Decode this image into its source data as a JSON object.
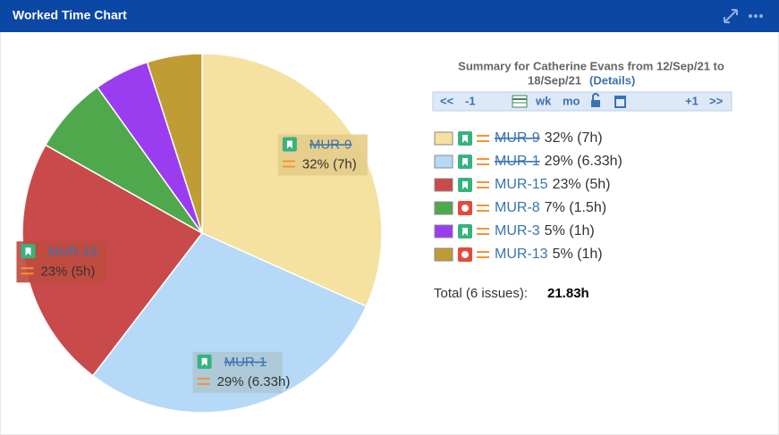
{
  "header": {
    "title": "Worked Time Chart"
  },
  "summary": {
    "title_line1": "Summary for Catherine Evans from 12/Sep/21 to",
    "title_line2": "18/Sep/21",
    "details": "(Details)"
  },
  "toolbar": {
    "prev_big": "<<",
    "prev": "-1",
    "week": "wk",
    "month": "mo",
    "next": "+1",
    "next_big": ">>"
  },
  "total": {
    "label": "Total (6 issues):",
    "value": "21.83h"
  },
  "chart_data": {
    "type": "pie",
    "categories": [
      "MUR-9",
      "MUR-1",
      "MUR-15",
      "MUR-8",
      "MUR-3",
      "MUR-13"
    ],
    "values": [
      32,
      29,
      23,
      7,
      5,
      5
    ],
    "value_labels": [
      "32% (7h)",
      "29% (6.33h)",
      "23% (5h)",
      "7% (1.5h)",
      "5% (1h)",
      "5% (1h)"
    ],
    "colors": [
      "#f5e1a0",
      "#b5d9f6",
      "#c94a4a",
      "#4fa84c",
      "#9a3df0",
      "#c09c34"
    ],
    "done": [
      true,
      true,
      false,
      false,
      false,
      false
    ],
    "issue_type": [
      "story",
      "story",
      "story",
      "bug",
      "story",
      "bug"
    ]
  }
}
